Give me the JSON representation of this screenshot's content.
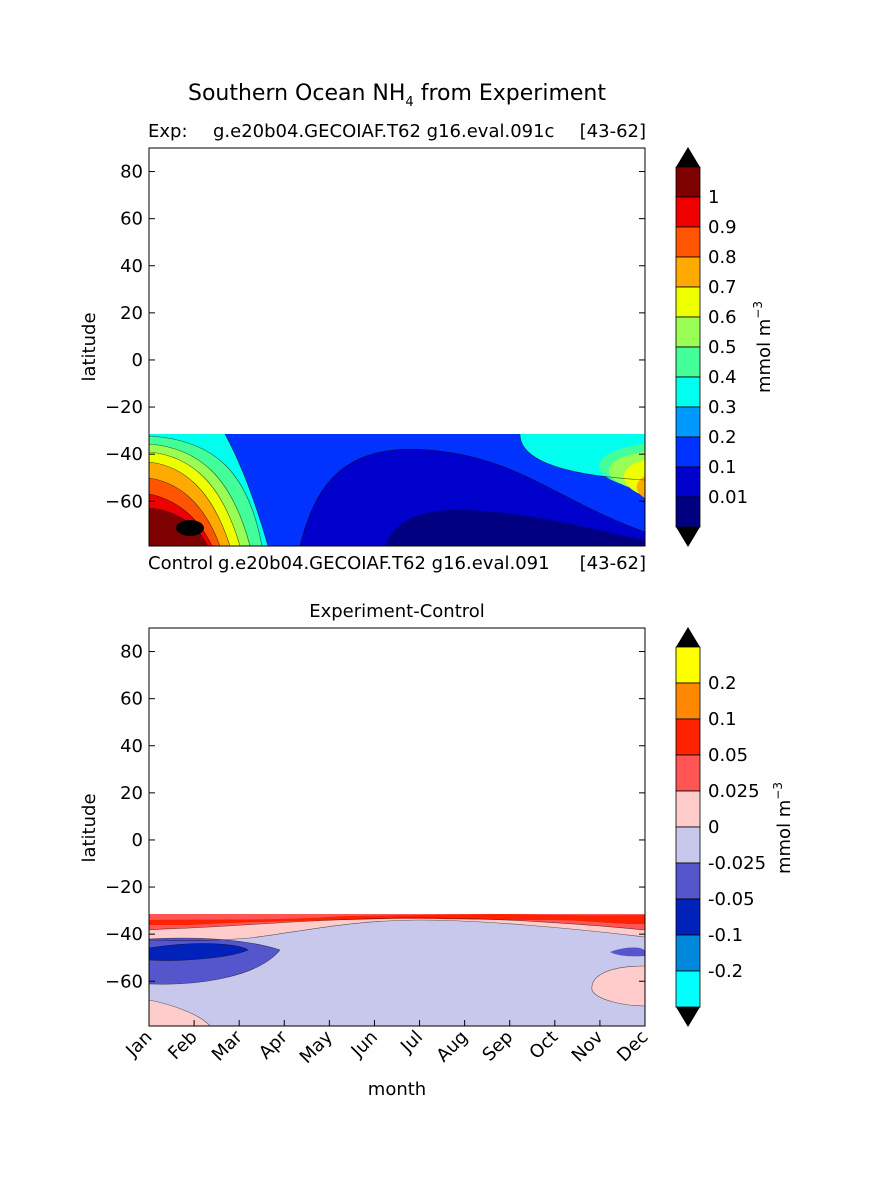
{
  "figure": {
    "title_main": "Southern Ocean NH",
    "title_sub": "4",
    "title_rest": " from Experiment"
  },
  "chart_data": [
    {
      "type": "filled-contour",
      "label_left": "Exp:",
      "label_mid": "g.e20b04.GECOIAF.T62 g16.eval.091c",
      "label_right": "[43-62]",
      "ylabel": "latitude",
      "ylim": [
        -79,
        90
      ],
      "yticks": [
        80,
        60,
        40,
        20,
        0,
        -20,
        -40,
        -60
      ],
      "ytick_labels": [
        "80",
        "60",
        "40",
        "20",
        "0",
        "−20",
        "−40",
        "−60"
      ],
      "data_lat_top": -32,
      "colorbar": {
        "label": "mmol m",
        "label_sup": "−3",
        "levels": [
          "1",
          "0.9",
          "0.8",
          "0.7",
          "0.6",
          "0.5",
          "0.4",
          "0.3",
          "0.2",
          "0.1",
          "0.01"
        ],
        "colors": [
          "#7f0000",
          "#ee0000",
          "#ff5500",
          "#ffaa00",
          "#eeff00",
          "#99ff55",
          "#44ff99",
          "#00ffee",
          "#0099ff",
          "#0033ff",
          "#0000cc",
          "#000080"
        ],
        "extend": "both"
      }
    },
    {
      "type": "filled-contour",
      "title_left": "Control",
      "title_mid": "g.e20b04.GECOIAF.T62 g16.eval.091",
      "title_right": "[43-62]",
      "title": "Experiment-Control",
      "ylabel": "latitude",
      "xlabel": "month",
      "ylim": [
        -79,
        90
      ],
      "yticks": [
        80,
        60,
        40,
        20,
        0,
        -20,
        -40,
        -60
      ],
      "ytick_labels": [
        "80",
        "60",
        "40",
        "20",
        "0",
        "−20",
        "−40",
        "−60"
      ],
      "xticks": [
        "Jan",
        "Feb",
        "Mar",
        "Apr",
        "May",
        "Jun",
        "Jul",
        "Aug",
        "Sep",
        "Oct",
        "Nov",
        "Dec"
      ],
      "data_lat_top": -32,
      "colorbar": {
        "label": "mmol m",
        "label_sup": "−3",
        "levels": [
          "0.2",
          "0.1",
          "0.05",
          "0.025",
          "0",
          "-0.025",
          "-0.05",
          "-0.1",
          "-0.2"
        ],
        "colors": [
          "#ffff00",
          "#ff8800",
          "#ff2200",
          "#ff5555",
          "#ffcccc",
          "#c8c8ec",
          "#5555cc",
          "#0022bb",
          "#0088dd",
          "#00ffff"
        ],
        "extend": "both"
      }
    }
  ]
}
